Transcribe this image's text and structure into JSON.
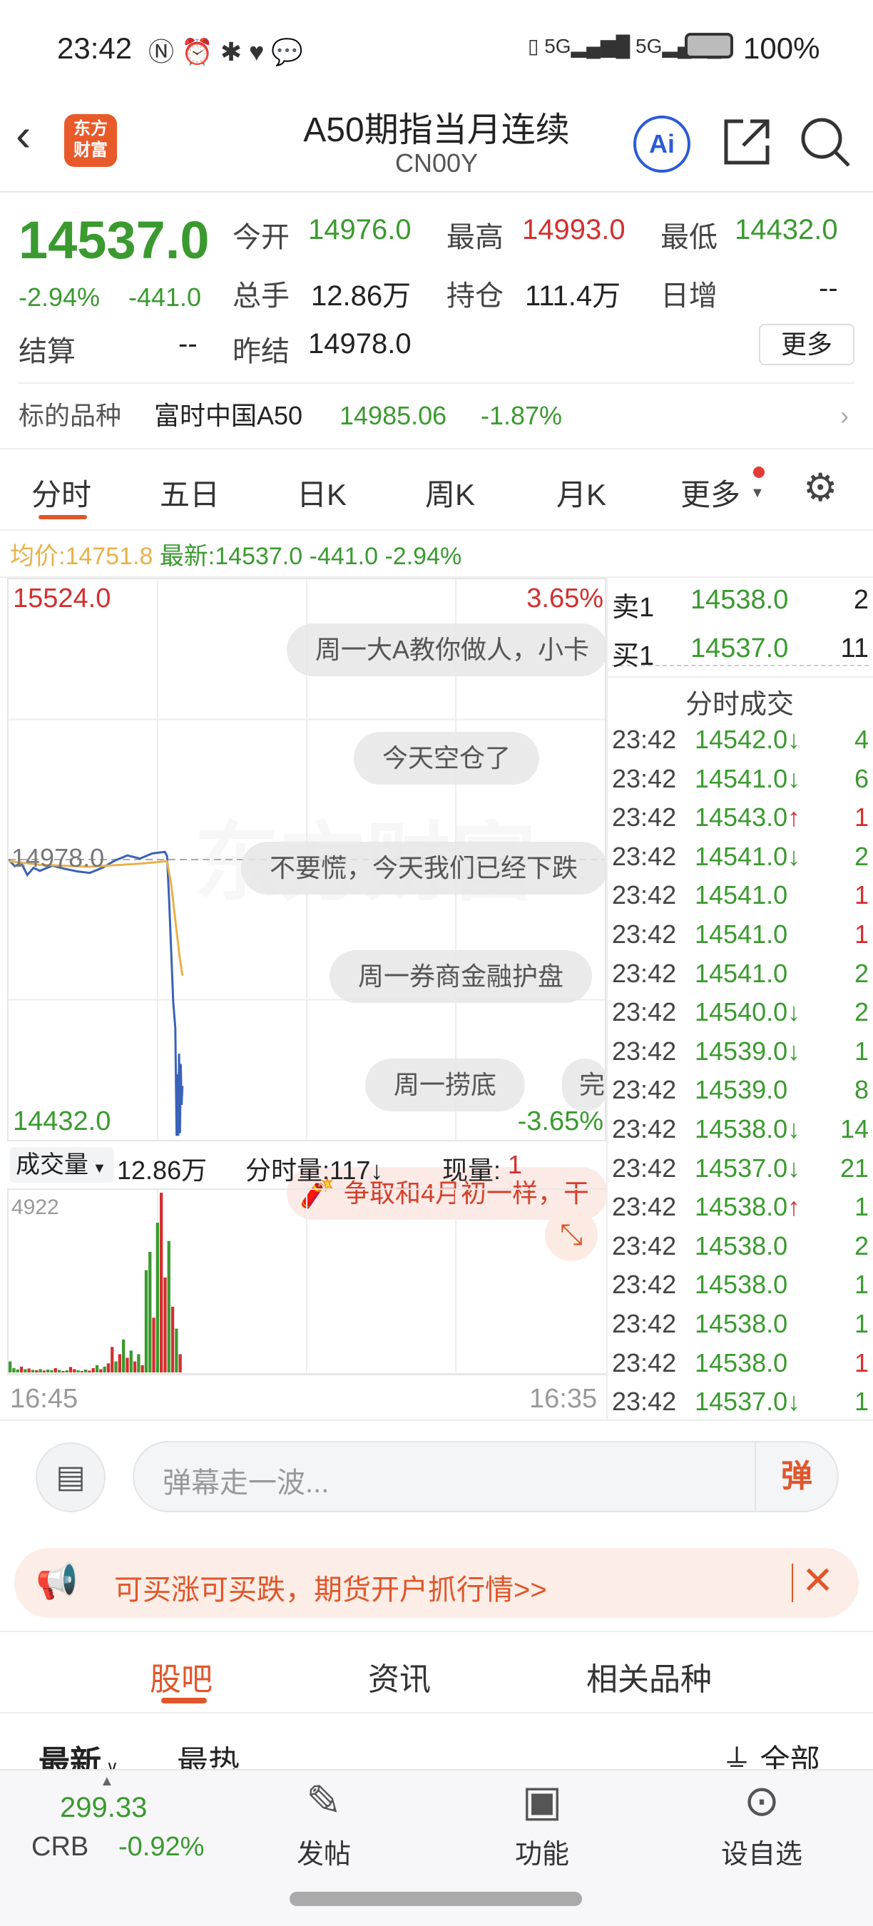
{
  "status": {
    "time": "23:42",
    "battery": "100%",
    "network": "5G"
  },
  "header": {
    "title": "A50期指当月连续",
    "code": "CN00Y",
    "logo_text": "东方财富",
    "ai_label": "Ai"
  },
  "quote": {
    "price": "14537.0",
    "change_pct": "-2.94%",
    "change": "-441.0",
    "open_label": "今开",
    "open": "14976.0",
    "high_label": "最高",
    "high": "14993.0",
    "low_label": "最低",
    "low": "14432.0",
    "volume_label": "总手",
    "volume": "12.86万",
    "oi_label": "持仓",
    "oi": "111.4万",
    "daily_inc_label": "日增",
    "daily_inc": "--",
    "settle_label": "结算",
    "settle": "--",
    "prev_settle_label": "昨结",
    "prev_settle": "14978.0",
    "more_label": "更多"
  },
  "underlying": {
    "label": "标的品种",
    "name": "富时中国A50",
    "price": "14985.06",
    "change_pct": "-1.87%"
  },
  "tabs": [
    {
      "label": "分时",
      "active": true
    },
    {
      "label": "五日"
    },
    {
      "label": "日K"
    },
    {
      "label": "周K"
    },
    {
      "label": "月K"
    },
    {
      "label": "更多"
    }
  ],
  "info_line": {
    "avg_label": "均价:",
    "avg": "14751.8",
    "latest_label": "最新:",
    "latest": "14537.0",
    "change": "-441.0",
    "pct": "-2.94%"
  },
  "chart_data": [
    {
      "type": "line",
      "y_top": "15524.0",
      "y_bottom": "14432.0",
      "y_mid": "14978.0",
      "pct_top": "3.65%",
      "pct_bottom": "-3.65%",
      "ylim": [
        14432,
        15524
      ],
      "x_start": "16:45",
      "x_end": "16:35",
      "series": [
        {
          "points": [
            [
              "16:45",
              14978
            ],
            [
              "17:00",
              14965
            ],
            [
              "17:15",
              14972
            ],
            [
              "17:30",
              14948
            ],
            [
              "17:45",
              14962
            ],
            [
              "18:00",
              14956
            ],
            [
              "18:30",
              14966
            ],
            [
              "19:00",
              14960
            ],
            [
              "19:30",
              14955
            ],
            [
              "20:00",
              14952
            ],
            [
              "20:30",
              14962
            ],
            [
              "21:00",
              14976
            ],
            [
              "21:30",
              14986
            ],
            [
              "22:00",
              14980
            ],
            [
              "22:30",
              14990
            ],
            [
              "23:00",
              14993
            ],
            [
              "23:05",
              14985
            ],
            [
              "23:10",
              14900
            ],
            [
              "23:15",
              14800
            ],
            [
              "23:20",
              14700
            ],
            [
              "23:25",
              14650
            ],
            [
              "23:28",
              14440
            ],
            [
              "23:30",
              14560
            ],
            [
              "23:32",
              14440
            ],
            [
              "23:34",
              14600
            ],
            [
              "23:36",
              14445
            ],
            [
              "23:38",
              14580
            ],
            [
              "23:40",
              14500
            ],
            [
              "23:42",
              14537
            ]
          ],
          "color": "#3a62b8"
        },
        {
          "points": [
            [
              "16:45",
              14975
            ],
            [
              "18:00",
              14968
            ],
            [
              "20:00",
              14964
            ],
            [
              "22:00",
              14970
            ],
            [
              "23:05",
              14975
            ],
            [
              "23:15",
              14930
            ],
            [
              "23:25",
              14860
            ],
            [
              "23:35",
              14790
            ],
            [
              "23:42",
              14752
            ]
          ],
          "color": "#e8b14a"
        }
      ]
    },
    {
      "type": "bar",
      "label": "成交量",
      "total": "12.86万",
      "interval_label": "分时量:117↓",
      "current_label": "现量:",
      "current": "1",
      "ymax_label": "4922",
      "ymax": 4922,
      "volumes": [
        300,
        120,
        80,
        160,
        90,
        110,
        70,
        60,
        90,
        50,
        80,
        60,
        120,
        70,
        40,
        60,
        150,
        90,
        60,
        40,
        80,
        50,
        120,
        200,
        90,
        160,
        250,
        700,
        300,
        500,
        900,
        400,
        600,
        300,
        500,
        200,
        2800,
        3300,
        1500,
        4100,
        4922,
        2600,
        3600,
        1800,
        1200,
        500
      ],
      "directions": "gggrgrgrgrggrgrgrrgrgrrgrgrrgrgrgrgrggrgrrgrgr"
    }
  ],
  "danmaku": [
    "周一大A教你做人，小卡",
    "今天空仓了",
    "不要慌，今天我们已经下跌",
    "周一券商金融护盘",
    "周一捞底",
    "完",
    "争取和4月初一样，干"
  ],
  "watermark": "东方财富",
  "orderbook": {
    "sell_label": "卖1",
    "sell_price": "14538.0",
    "sell_qty": "2",
    "buy_label": "买1",
    "buy_price": "14537.0",
    "buy_qty": "11",
    "trades_title": "分时成交"
  },
  "trades": [
    {
      "t": "23:42",
      "p": "14542.0",
      "a": "↓",
      "q": "4",
      "qc": "g"
    },
    {
      "t": "23:42",
      "p": "14541.0",
      "a": "↓",
      "q": "6",
      "qc": "g"
    },
    {
      "t": "23:42",
      "p": "14543.0",
      "a": "↑",
      "q": "1",
      "qc": "r"
    },
    {
      "t": "23:42",
      "p": "14541.0",
      "a": "↓",
      "q": "2",
      "qc": "g"
    },
    {
      "t": "23:42",
      "p": "14541.0",
      "a": "",
      "q": "1",
      "qc": "r"
    },
    {
      "t": "23:42",
      "p": "14541.0",
      "a": "",
      "q": "1",
      "qc": "r"
    },
    {
      "t": "23:42",
      "p": "14541.0",
      "a": "",
      "q": "2",
      "qc": "g"
    },
    {
      "t": "23:42",
      "p": "14540.0",
      "a": "↓",
      "q": "2",
      "qc": "g"
    },
    {
      "t": "23:42",
      "p": "14539.0",
      "a": "↓",
      "q": "1",
      "qc": "g"
    },
    {
      "t": "23:42",
      "p": "14539.0",
      "a": "",
      "q": "8",
      "qc": "g"
    },
    {
      "t": "23:42",
      "p": "14538.0",
      "a": "↓",
      "q": "14",
      "qc": "g"
    },
    {
      "t": "23:42",
      "p": "14537.0",
      "a": "↓",
      "q": "21",
      "qc": "g"
    },
    {
      "t": "23:42",
      "p": "14538.0",
      "a": "↑",
      "q": "1",
      "qc": "g"
    },
    {
      "t": "23:42",
      "p": "14538.0",
      "a": "",
      "q": "2",
      "qc": "g"
    },
    {
      "t": "23:42",
      "p": "14538.0",
      "a": "",
      "q": "1",
      "qc": "g"
    },
    {
      "t": "23:42",
      "p": "14538.0",
      "a": "",
      "q": "1",
      "qc": "g"
    },
    {
      "t": "23:42",
      "p": "14538.0",
      "a": "",
      "q": "1",
      "qc": "r"
    },
    {
      "t": "23:42",
      "p": "14537.0",
      "a": "↓",
      "q": "1",
      "qc": "g"
    }
  ],
  "comment": {
    "placeholder": "弹幕走一波...",
    "send_label": "弹"
  },
  "banner": {
    "text": "可买涨可买跌，期货开户抓行情>>"
  },
  "section_tabs": [
    {
      "label": "股吧",
      "active": true
    },
    {
      "label": "资讯"
    },
    {
      "label": "相关品种"
    }
  ],
  "sort": {
    "latest": "最新",
    "hot": "最热",
    "filter": "全部"
  },
  "bottom": {
    "index_value": "299.33",
    "index_name": "CRB",
    "index_pct": "-0.92%",
    "post": "发帖",
    "func": "功能",
    "watch": "设自选"
  },
  "colors": {
    "up": "#d32f2f",
    "down": "#3a9a2f",
    "accent": "#e0562a"
  }
}
